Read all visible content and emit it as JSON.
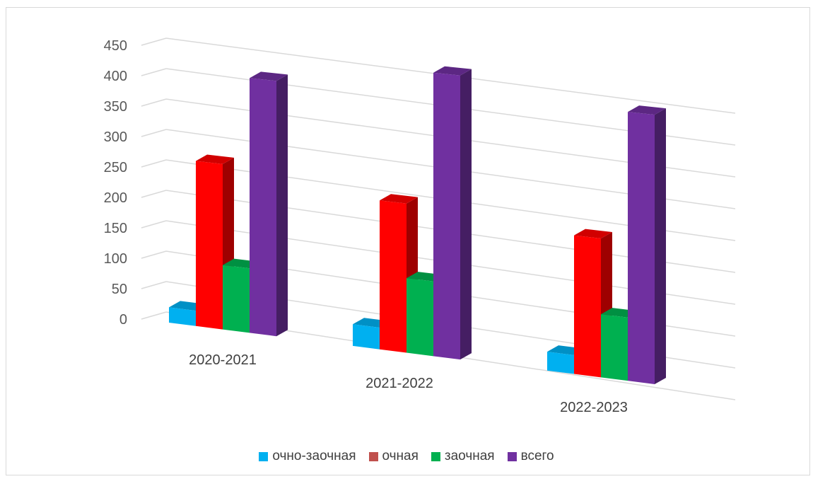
{
  "chart_data": {
    "type": "bar",
    "variant": "3d-clustered-column",
    "categories": [
      "2020-2021",
      "2021-2022",
      "2022-2023"
    ],
    "series": [
      {
        "name": "очно-заочная",
        "color": "#00b0f0",
        "values": [
          25,
          35,
          30
        ]
      },
      {
        "name": "очная",
        "color": "#ff0000",
        "values": [
          270,
          240,
          220
        ]
      },
      {
        "name": "заочная",
        "color": "#00b050",
        "values": [
          105,
          120,
          100
        ]
      },
      {
        "name": "всего",
        "color": "#7030a0",
        "values": [
          415,
          455,
          425
        ]
      }
    ],
    "yticks": [
      "0",
      "50",
      "100",
      "150",
      "200",
      "250",
      "300",
      "350",
      "400",
      "450"
    ],
    "ylim": [
      0,
      450
    ],
    "grid": true,
    "legend_position": "bottom"
  }
}
